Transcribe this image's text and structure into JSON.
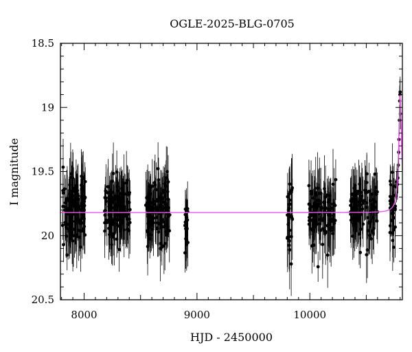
{
  "chart_data": {
    "type": "scatter",
    "title": "OGLE-2025-BLG-0705",
    "xlabel": "HJD - 2450000",
    "ylabel": "I magnitude",
    "xlim": [
      7790,
      10820
    ],
    "ylim": [
      20.5,
      18.5
    ],
    "y_inverted": true,
    "xticks": [
      8000,
      9000,
      10000
    ],
    "xtick_labels": [
      "8000",
      "9000",
      "10000"
    ],
    "yticks": [
      18.5,
      19,
      19.5,
      20,
      20.5
    ],
    "ytick_labels": [
      "18.5",
      "19",
      "19.5",
      "20",
      "20.5"
    ],
    "grid": false,
    "legend": "none",
    "colors": {
      "points": "#000000",
      "model": "#ee55ee"
    },
    "series": [
      {
        "kind": "points_with_errorbars",
        "seasons": [
          {
            "x_range": [
              7810,
              8010
            ],
            "mag_mean": 19.8,
            "mag_spread": 0.22,
            "err": 0.22,
            "count": 130
          },
          {
            "x_range": [
              8180,
              8410
            ],
            "mag_mean": 19.8,
            "mag_spread": 0.2,
            "err": 0.2,
            "count": 130
          },
          {
            "x_range": [
              8545,
              8760
            ],
            "mag_mean": 19.82,
            "mag_spread": 0.2,
            "err": 0.2,
            "count": 120
          },
          {
            "x_range": [
              8890,
              8920
            ],
            "mag_mean": 19.95,
            "mag_spread": 0.18,
            "err": 0.18,
            "count": 22
          },
          {
            "x_range": [
              9800,
              9845
            ],
            "mag_mean": 19.85,
            "mag_spread": 0.25,
            "err": 0.25,
            "count": 30
          },
          {
            "x_range": [
              9990,
              10230
            ],
            "mag_mean": 19.82,
            "mag_spread": 0.22,
            "err": 0.22,
            "count": 110
          },
          {
            "x_range": [
              10360,
              10600
            ],
            "mag_mean": 19.8,
            "mag_spread": 0.2,
            "err": 0.2,
            "count": 110
          },
          {
            "x_range": [
              10710,
              10760
            ],
            "mag_mean": 19.8,
            "mag_spread": 0.2,
            "err": 0.2,
            "count": 30
          }
        ],
        "rise_points": [
          {
            "x": 10768,
            "y": 19.62
          },
          {
            "x": 10772,
            "y": 19.58
          },
          {
            "x": 10776,
            "y": 19.6
          },
          {
            "x": 10780,
            "y": 19.55
          },
          {
            "x": 10784,
            "y": 19.45
          },
          {
            "x": 10787,
            "y": 19.35
          },
          {
            "x": 10790,
            "y": 19.25
          },
          {
            "x": 10793,
            "y": 19.1
          },
          {
            "x": 10796,
            "y": 18.95
          },
          {
            "x": 10798,
            "y": 18.9
          },
          {
            "x": 10800,
            "y": 18.88
          },
          {
            "x": 10802,
            "y": 19.05
          }
        ]
      },
      {
        "kind": "model_line",
        "baseline_mag": 19.82,
        "peak_x": 10800,
        "peak_mag": 18.9,
        "tE": 12
      }
    ]
  }
}
